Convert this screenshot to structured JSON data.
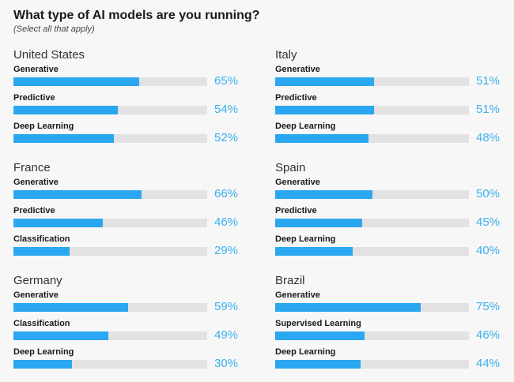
{
  "title": "What type of AI models are you running?",
  "subtitle": "(Select all that apply)",
  "colors": {
    "bar_fill": "#2aa7f0",
    "bar_track": "#e2e2e2",
    "value_text": "#3ab0ee"
  },
  "chart_data": [
    {
      "type": "bar",
      "title": "United States",
      "categories": [
        "Generative",
        "Predictive",
        "Deep Learning"
      ],
      "values": [
        65,
        54,
        52
      ],
      "labels": [
        "65%",
        "54%",
        "52%"
      ],
      "ylim": [
        0,
        100
      ]
    },
    {
      "type": "bar",
      "title": "Italy",
      "categories": [
        "Generative",
        "Predictive",
        "Deep Learning"
      ],
      "values": [
        51,
        51,
        48
      ],
      "labels": [
        "51%",
        "51%",
        "48%"
      ],
      "ylim": [
        0,
        100
      ]
    },
    {
      "type": "bar",
      "title": "France",
      "categories": [
        "Generative",
        "Predictive",
        "Classification"
      ],
      "values": [
        66,
        46,
        29
      ],
      "labels": [
        "66%",
        "46%",
        "29%"
      ],
      "ylim": [
        0,
        100
      ]
    },
    {
      "type": "bar",
      "title": "Spain",
      "categories": [
        "Generative",
        "Predictive",
        "Deep Learning"
      ],
      "values": [
        50,
        45,
        40
      ],
      "labels": [
        "50%",
        "45%",
        "40%"
      ],
      "ylim": [
        0,
        100
      ]
    },
    {
      "type": "bar",
      "title": "Germany",
      "categories": [
        "Generative",
        "Classification",
        "Deep Learning"
      ],
      "values": [
        59,
        49,
        30
      ],
      "labels": [
        "59%",
        "49%",
        "30%"
      ],
      "ylim": [
        0,
        100
      ]
    },
    {
      "type": "bar",
      "title": "Brazil",
      "categories": [
        "Generative",
        "Supervised Learning",
        "Deep Learning"
      ],
      "values": [
        75,
        46,
        44
      ],
      "labels": [
        "75%",
        "46%",
        "44%"
      ],
      "ylim": [
        0,
        100
      ]
    }
  ]
}
